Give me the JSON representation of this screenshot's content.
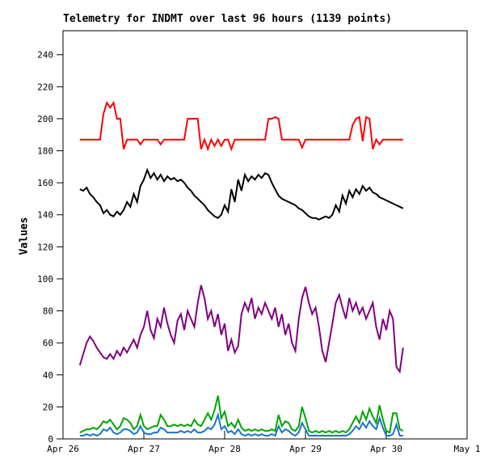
{
  "canvas": {
    "background_color": "#ffffff",
    "axis_color": "#000000"
  },
  "chart_data": {
    "type": "line",
    "title": "Telemetry for INDMT over last 96 hours (1139 points)",
    "ylabel": "Values",
    "xlabel": "",
    "grid": false,
    "legend": "none",
    "ylim": [
      0,
      255
    ],
    "yticks": [
      0,
      20,
      40,
      60,
      80,
      100,
      120,
      140,
      160,
      180,
      200,
      220,
      240
    ],
    "xlim_hours": [
      0,
      120
    ],
    "x_unit": "hours since Apr 26 00:00",
    "xticks": [
      {
        "hour": 0,
        "label": "Apr 26"
      },
      {
        "hour": 24,
        "label": "Apr 27"
      },
      {
        "hour": 48,
        "label": "Apr 28"
      },
      {
        "hour": 72,
        "label": "Apr 29"
      },
      {
        "hour": 96,
        "label": "Apr 30"
      },
      {
        "hour": 120,
        "label": "May 1"
      }
    ],
    "x_start_hour": 5,
    "x_step_hours": 1,
    "series": [
      {
        "name": "red",
        "color": "#ff0000",
        "values": [
          187,
          187,
          187,
          187,
          187,
          187,
          187,
          203,
          210,
          207,
          210,
          200,
          200,
          181,
          187,
          187,
          187,
          187,
          184,
          187,
          187,
          187,
          187,
          187,
          184,
          187,
          187,
          187,
          187,
          187,
          187,
          187,
          200,
          200,
          200,
          200,
          181,
          187,
          181,
          187,
          183,
          187,
          183,
          187,
          187,
          181,
          187,
          187,
          187,
          187,
          187,
          187,
          187,
          187,
          187,
          187,
          200,
          200,
          201,
          200,
          187,
          187,
          187,
          187,
          187,
          187,
          182,
          187,
          187,
          187,
          187,
          187,
          187,
          187,
          187,
          187,
          187,
          187,
          187,
          187,
          187,
          196,
          200,
          201,
          186,
          201,
          200,
          181,
          187,
          184,
          187,
          187,
          187,
          187,
          187,
          187,
          187
        ]
      },
      {
        "name": "black",
        "color": "#000000",
        "values": [
          156,
          155,
          157,
          153,
          151,
          148,
          146,
          141,
          143,
          140,
          139,
          142,
          140,
          143,
          148,
          145,
          153,
          148,
          158,
          162,
          168,
          163,
          166,
          162,
          165,
          161,
          164,
          162,
          163,
          161,
          162,
          160,
          157,
          155,
          152,
          150,
          148,
          146,
          143,
          141,
          139,
          138,
          140,
          146,
          142,
          156,
          148,
          162,
          155,
          165,
          161,
          164,
          162,
          165,
          163,
          166,
          165,
          160,
          156,
          152,
          150,
          149,
          148,
          147,
          146,
          144,
          143,
          141,
          139,
          138,
          138,
          137,
          138,
          139,
          138,
          140,
          146,
          142,
          152,
          147,
          155,
          151,
          156,
          153,
          158,
          155,
          157,
          154,
          153,
          151,
          150,
          149,
          148,
          147,
          146,
          145,
          144
        ]
      },
      {
        "name": "purple",
        "color": "#800080",
        "values": [
          46,
          53,
          60,
          64,
          61,
          57,
          54,
          51,
          50,
          53,
          50,
          55,
          52,
          57,
          54,
          58,
          62,
          57,
          65,
          70,
          80,
          68,
          63,
          75,
          70,
          82,
          72,
          65,
          60,
          74,
          78,
          68,
          80,
          75,
          70,
          85,
          96,
          88,
          75,
          80,
          70,
          78,
          65,
          72,
          55,
          62,
          54,
          58,
          78,
          85,
          80,
          88,
          75,
          82,
          78,
          85,
          80,
          75,
          82,
          70,
          78,
          65,
          72,
          60,
          55,
          75,
          88,
          95,
          85,
          78,
          82,
          70,
          55,
          48,
          60,
          72,
          85,
          90,
          82,
          75,
          88,
          80,
          85,
          78,
          82,
          75,
          80,
          85,
          70,
          62,
          75,
          68,
          80,
          75,
          45,
          42,
          57
        ]
      },
      {
        "name": "green",
        "color": "#00a400",
        "values": [
          4,
          5,
          6,
          6,
          7,
          6,
          8,
          11,
          10,
          12,
          9,
          6,
          8,
          13,
          12,
          10,
          6,
          8,
          15,
          8,
          6,
          7,
          8,
          8,
          15,
          12,
          8,
          8,
          9,
          8,
          9,
          8,
          9,
          8,
          12,
          9,
          8,
          12,
          16,
          12,
          18,
          27,
          13,
          17,
          8,
          10,
          7,
          12,
          7,
          5,
          6,
          5,
          6,
          5,
          6,
          5,
          5,
          6,
          5,
          15,
          8,
          11,
          10,
          6,
          5,
          8,
          20,
          13,
          5,
          4,
          5,
          4,
          5,
          4,
          5,
          4,
          5,
          4,
          5,
          4,
          6,
          10,
          14,
          10,
          17,
          12,
          19,
          14,
          10,
          21,
          12,
          5,
          4,
          16,
          16,
          6,
          5
        ]
      },
      {
        "name": "blue",
        "color": "#1874cd",
        "values": [
          2,
          2,
          3,
          2,
          3,
          2,
          3,
          6,
          5,
          7,
          4,
          3,
          4,
          6,
          6,
          5,
          3,
          4,
          8,
          4,
          3,
          3,
          4,
          4,
          7,
          6,
          4,
          4,
          4,
          4,
          5,
          4,
          5,
          4,
          6,
          4,
          4,
          5,
          7,
          6,
          9,
          15,
          6,
          8,
          4,
          5,
          3,
          6,
          3,
          2,
          3,
          2,
          3,
          2,
          3,
          2,
          2,
          3,
          2,
          8,
          4,
          6,
          5,
          3,
          2,
          4,
          10,
          6,
          2,
          2,
          2,
          2,
          2,
          2,
          2,
          2,
          2,
          2,
          2,
          2,
          3,
          5,
          8,
          6,
          10,
          7,
          11,
          8,
          6,
          13,
          7,
          2,
          2,
          3,
          9,
          2,
          2
        ]
      }
    ]
  }
}
